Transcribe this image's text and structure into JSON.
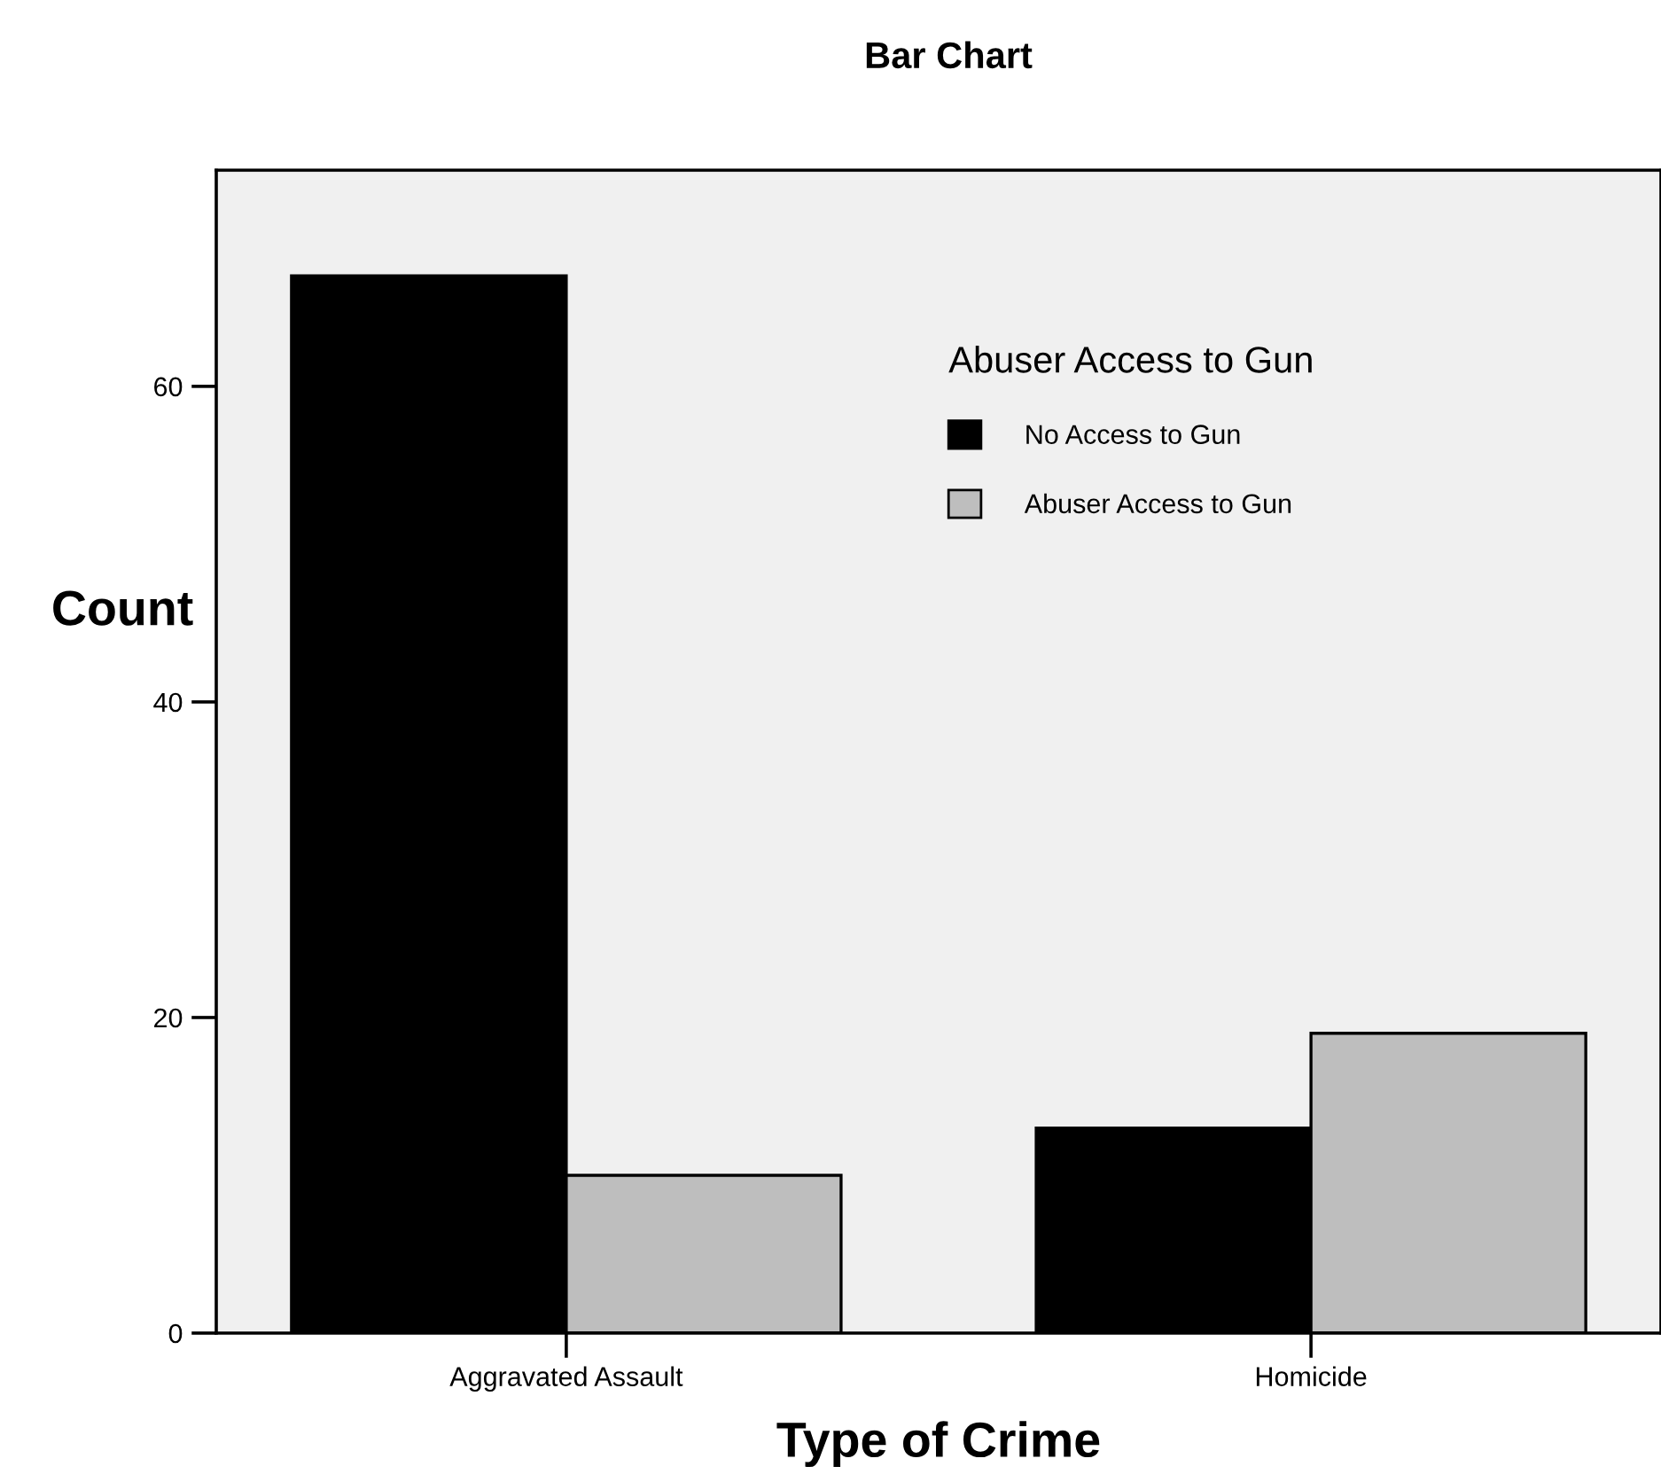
{
  "chart_data": {
    "type": "bar",
    "title": "Bar Chart",
    "xlabel": "Type of Crime",
    "ylabel": "Count",
    "categories": [
      "Aggravated Assault",
      "Homicide"
    ],
    "series": [
      {
        "name": "No Access to Gun",
        "color": "#000000",
        "values": [
          67,
          13
        ]
      },
      {
        "name": "Abuser Access to Gun",
        "color": "#bebebe",
        "values": [
          10,
          19
        ]
      }
    ],
    "legend_title": "Abuser Access to Gun",
    "legend": "top right",
    "ylim": [
      0,
      73.7
    ],
    "yticks": [
      0,
      20,
      40,
      60
    ],
    "grid": false
  }
}
